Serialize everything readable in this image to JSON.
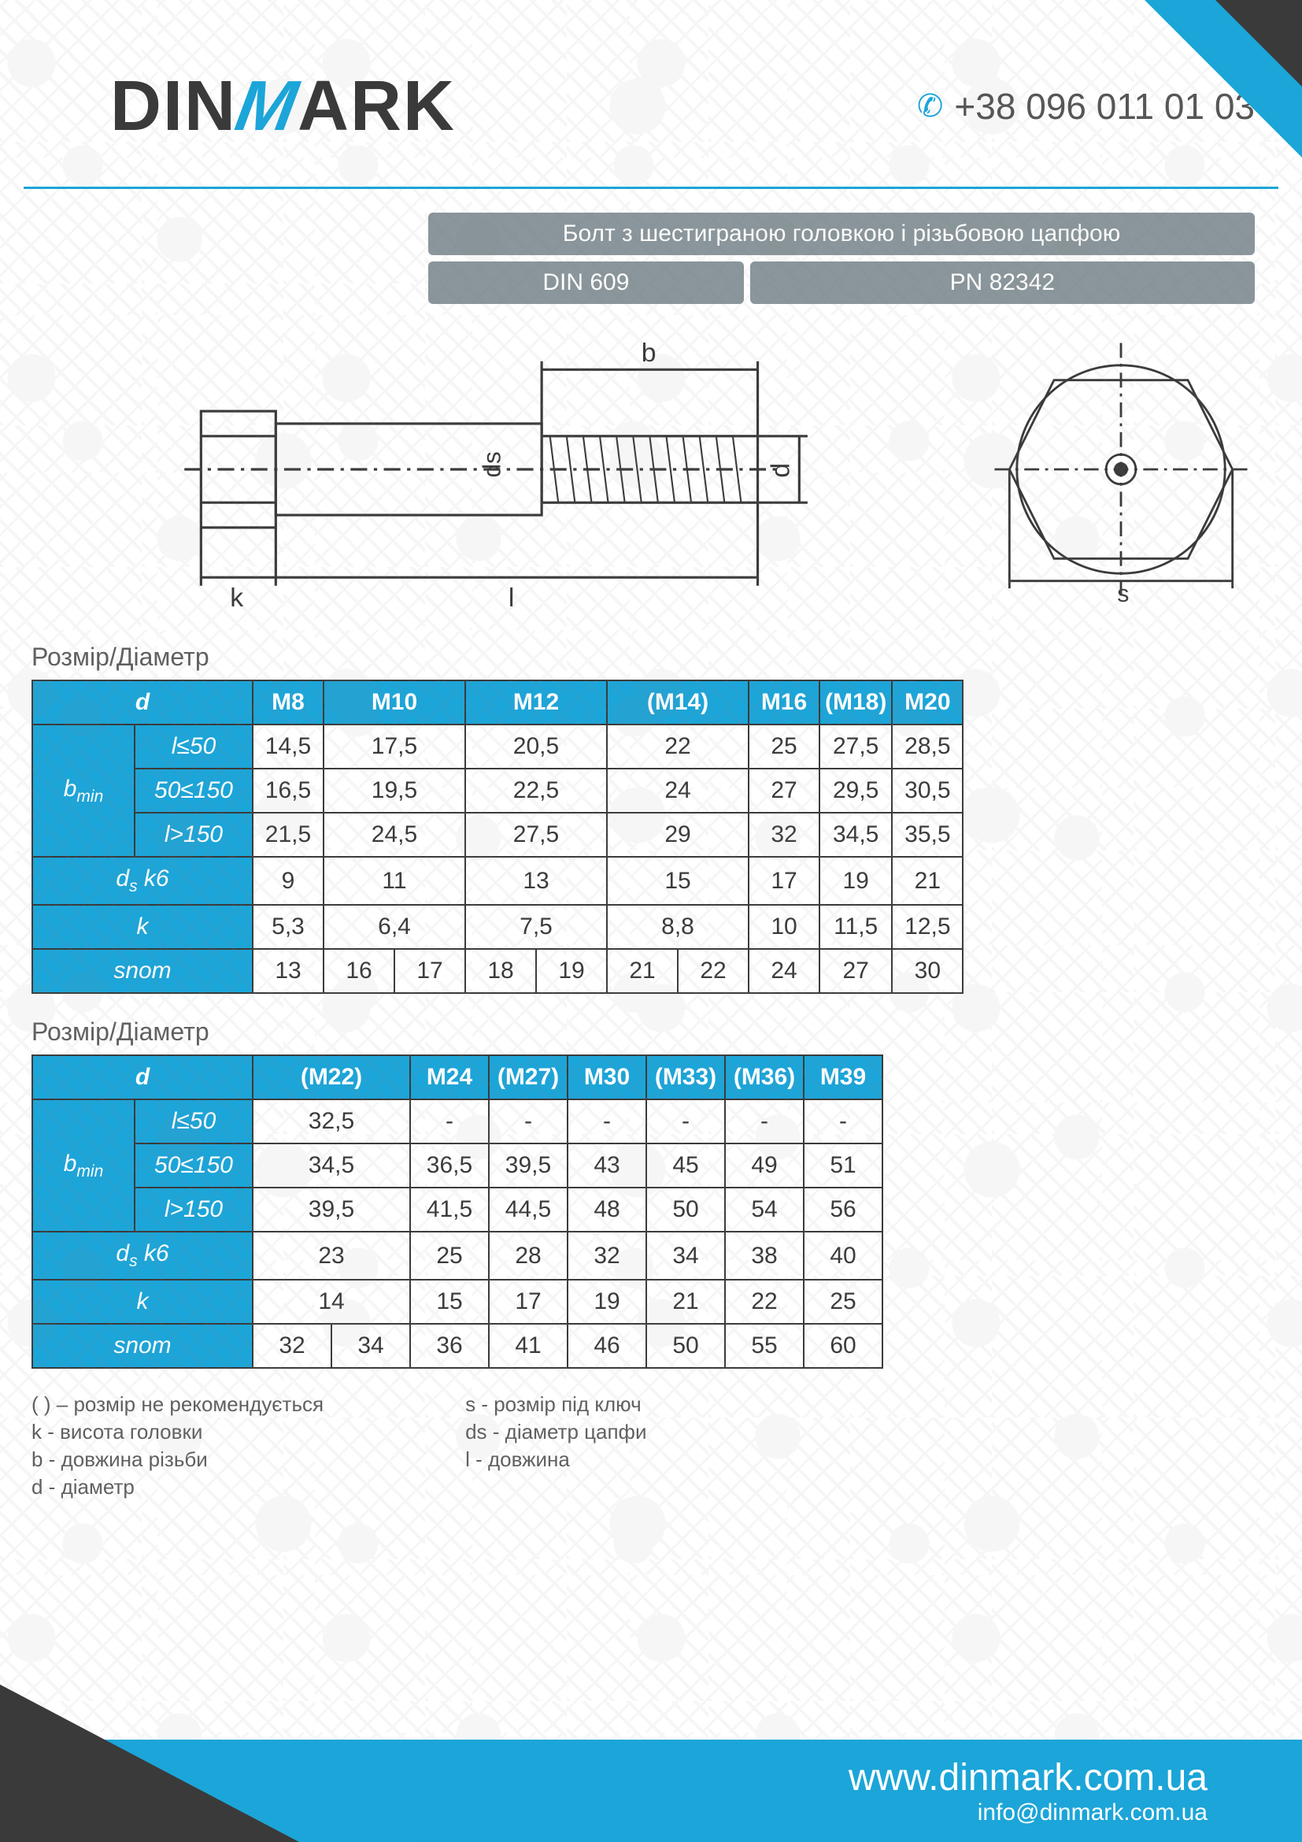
{
  "brand": {
    "pre": "DIN",
    "m": "M",
    "post": "ARK"
  },
  "phone": "+38 096 011 01 03",
  "title": "Болт з шестиграною головкою і різьбовою цапфою",
  "std1": "DIN 609",
  "std2": "PN 82342",
  "colors": {
    "accent": "#1ca5d8",
    "grey": "#8a969b",
    "dark": "#3a3a3a"
  },
  "section_label": "Розмір/Діаметр",
  "diag_labels": {
    "b": "b",
    "d": "d",
    "ds": "ds",
    "k": "k",
    "l": "l",
    "s": "s"
  },
  "t1": {
    "d_label": "d",
    "bmin_label": "b",
    "bmin_sub": "min",
    "ds_label": "d",
    "ds_sub": "s",
    "ds_k6": " k6",
    "k_label": "k",
    "snom_label": "snom",
    "cond1": "l≤50",
    "cond2a": "50<l",
    "cond2b": "≤150",
    "cond3": "l>150",
    "sizes": [
      "M8",
      "M10",
      "M12",
      "(M14)",
      "M16",
      "(M18)",
      "M20"
    ],
    "b1": [
      "14,5",
      "17,5",
      "20,5",
      "22",
      "25",
      "27,5",
      "28,5"
    ],
    "b2": [
      "16,5",
      "19,5",
      "22,5",
      "24",
      "27",
      "29,5",
      "30,5"
    ],
    "b3": [
      "21,5",
      "24,5",
      "27,5",
      "29",
      "32",
      "34,5",
      "35,5"
    ],
    "ds": [
      "9",
      "11",
      "13",
      "15",
      "17",
      "19",
      "21"
    ],
    "k": [
      "5,3",
      "6,4",
      "7,5",
      "8,8",
      "10",
      "11,5",
      "12,5"
    ],
    "snom_cells": [
      "13",
      "16",
      "17",
      "18",
      "19",
      "21",
      "22",
      "24",
      "27",
      "30"
    ]
  },
  "t2": {
    "sizes": [
      "(M22)",
      "M24",
      "(M27)",
      "M30",
      "(M33)",
      "(M36)",
      "M39"
    ],
    "b1": [
      "32,5",
      "-",
      "-",
      "-",
      "-",
      "-",
      "-"
    ],
    "b2": [
      "34,5",
      "36,5",
      "39,5",
      "43",
      "45",
      "49",
      "51"
    ],
    "b3": [
      "39,5",
      "41,5",
      "44,5",
      "48",
      "50",
      "54",
      "56"
    ],
    "ds": [
      "23",
      "25",
      "28",
      "32",
      "34",
      "38",
      "40"
    ],
    "k": [
      "14",
      "15",
      "17",
      "19",
      "21",
      "22",
      "25"
    ],
    "snom_cells": [
      "32",
      "34",
      "36",
      "41",
      "46",
      "50",
      "55",
      "60"
    ]
  },
  "legend": {
    "l1": "( ) – розмір не рекомендується",
    "l2": "k - висота головки",
    "l3": "b - довжина різьби",
    "l4": "d - діаметр",
    "r1": "s - розмір під ключ",
    "r2": "ds - діаметр цапфи",
    "r3": "l - довжина"
  },
  "footer": {
    "url": "www.dinmark.com.ua",
    "email": "info@dinmark.com.ua"
  }
}
